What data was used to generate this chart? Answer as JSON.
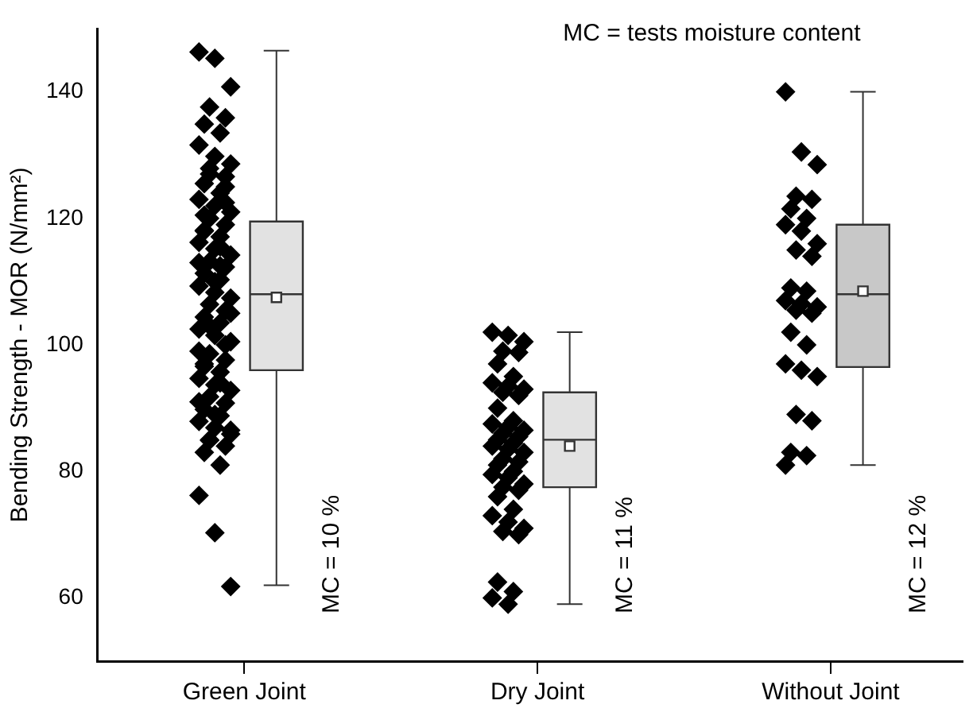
{
  "chart_data": {
    "type": "box",
    "categories": [
      "Green Joint",
      "Dry Joint",
      "Without Joint"
    ],
    "ylabel": "Bending Strength - MOR (N/mm²)",
    "ylim": [
      50,
      150
    ],
    "yticks": [
      60,
      80,
      100,
      120,
      140
    ],
    "boxes": [
      {
        "low": 62,
        "q1": 96,
        "median": 108,
        "q3": 119.5,
        "high": 146.5,
        "mean": 107.5
      },
      {
        "low": 59,
        "q1": 77.5,
        "median": 85,
        "q3": 92.5,
        "high": 102,
        "mean": 84
      },
      {
        "low": 81,
        "q1": 96.5,
        "median": 108,
        "q3": 119,
        "high": 140,
        "mean": 108.5
      }
    ],
    "series": [
      {
        "type": "scatter",
        "color": "#000000",
        "x": [
          "Green Joint",
          "Green Joint",
          "Green Joint",
          "Green Joint",
          "Green Joint",
          "Green Joint",
          "Green Joint",
          "Green Joint",
          "Green Joint",
          "Green Joint",
          "Green Joint",
          "Green Joint",
          "Green Joint",
          "Green Joint",
          "Green Joint",
          "Green Joint",
          "Green Joint",
          "Green Joint",
          "Green Joint",
          "Green Joint",
          "Green Joint",
          "Green Joint",
          "Green Joint",
          "Green Joint",
          "Green Joint",
          "Green Joint",
          "Green Joint",
          "Green Joint",
          "Green Joint",
          "Green Joint",
          "Green Joint",
          "Green Joint",
          "Green Joint",
          "Green Joint",
          "Green Joint",
          "Green Joint",
          "Green Joint",
          "Green Joint",
          "Green Joint",
          "Green Joint",
          "Green Joint",
          "Green Joint",
          "Green Joint",
          "Green Joint",
          "Green Joint",
          "Green Joint",
          "Green Joint",
          "Green Joint",
          "Green Joint",
          "Green Joint",
          "Green Joint",
          "Green Joint",
          "Green Joint",
          "Green Joint",
          "Green Joint",
          "Green Joint",
          "Green Joint",
          "Green Joint",
          "Green Joint",
          "Green Joint",
          "Green Joint",
          "Green Joint",
          "Green Joint",
          "Green Joint",
          "Green Joint",
          "Green Joint",
          "Green Joint",
          "Green Joint",
          "Green Joint",
          "Green Joint",
          "Green Joint",
          "Green Joint",
          "Green Joint",
          "Green Joint",
          "Green Joint",
          "Green Joint",
          "Green Joint",
          "Green Joint"
        ],
        "values": [
          146.3,
          145.3,
          140.8,
          137.6,
          135.9,
          134.9,
          133.5,
          131.6,
          129.8,
          128.6,
          127.9,
          126.6,
          125.5,
          124,
          123,
          122,
          121,
          120,
          119,
          118.1,
          117.1,
          116.2,
          115.2,
          114.2,
          113.2,
          112.3,
          111.3,
          110.3,
          109.3,
          108.3,
          107.4,
          106.4,
          105.4,
          104.4,
          103.5,
          102.5,
          101.5,
          100.5,
          98.6,
          97.6,
          96.6,
          95.7,
          94.7,
          93.7,
          92.8,
          91.8,
          90.8,
          89.8,
          88.8,
          87.9,
          86.9,
          85.9,
          84.9,
          84,
          83,
          81,
          76.2,
          70.3,
          61.8,
          127,
          122.5,
          118,
          115.5,
          113,
          110,
          105,
          103,
          100,
          97,
          94,
          91,
          89,
          86.5,
          85,
          125,
          120.5,
          112.5,
          99
        ]
      },
      {
        "type": "scatter",
        "color": "#000000",
        "x": [
          "Dry Joint",
          "Dry Joint",
          "Dry Joint",
          "Dry Joint",
          "Dry Joint",
          "Dry Joint",
          "Dry Joint",
          "Dry Joint",
          "Dry Joint",
          "Dry Joint",
          "Dry Joint",
          "Dry Joint",
          "Dry Joint",
          "Dry Joint",
          "Dry Joint",
          "Dry Joint",
          "Dry Joint",
          "Dry Joint",
          "Dry Joint",
          "Dry Joint",
          "Dry Joint",
          "Dry Joint",
          "Dry Joint",
          "Dry Joint",
          "Dry Joint",
          "Dry Joint",
          "Dry Joint",
          "Dry Joint",
          "Dry Joint",
          "Dry Joint",
          "Dry Joint",
          "Dry Joint",
          "Dry Joint",
          "Dry Joint",
          "Dry Joint",
          "Dry Joint",
          "Dry Joint",
          "Dry Joint",
          "Dry Joint",
          "Dry Joint",
          "Dry Joint",
          "Dry Joint",
          "Dry Joint",
          "Dry Joint"
        ],
        "values": [
          102,
          101.5,
          100.5,
          99,
          98.8,
          97,
          95,
          94,
          93.5,
          93,
          92.5,
          92,
          90,
          88,
          87.5,
          87,
          86.5,
          86,
          85.5,
          85,
          84.5,
          84,
          83.5,
          83,
          82,
          81.5,
          81,
          80,
          79.5,
          79,
          78,
          77.5,
          77,
          76,
          74,
          73,
          72,
          71,
          70.5,
          70,
          62.5,
          61,
          60,
          59
        ]
      },
      {
        "type": "scatter",
        "color": "#000000",
        "x": [
          "Without Joint",
          "Without Joint",
          "Without Joint",
          "Without Joint",
          "Without Joint",
          "Without Joint",
          "Without Joint",
          "Without Joint",
          "Without Joint",
          "Without Joint",
          "Without Joint",
          "Without Joint",
          "Without Joint",
          "Without Joint",
          "Without Joint",
          "Without Joint",
          "Without Joint",
          "Without Joint",
          "Without Joint",
          "Without Joint",
          "Without Joint",
          "Without Joint",
          "Without Joint",
          "Without Joint",
          "Without Joint",
          "Without Joint",
          "Without Joint",
          "Without Joint",
          "Without Joint"
        ],
        "values": [
          140,
          130.5,
          128.5,
          123.5,
          123,
          121.5,
          120,
          119,
          118,
          116,
          115,
          114,
          109,
          108.5,
          107,
          106.5,
          106,
          105.5,
          105,
          102,
          100,
          97,
          96,
          95,
          89,
          88,
          83,
          82.5,
          81
        ]
      }
    ],
    "marker": "diamond",
    "annotations": [
      "MC = tests moisture content",
      "MC = 10 %",
      "MC = 11 %",
      "MC = 12 %"
    ]
  }
}
